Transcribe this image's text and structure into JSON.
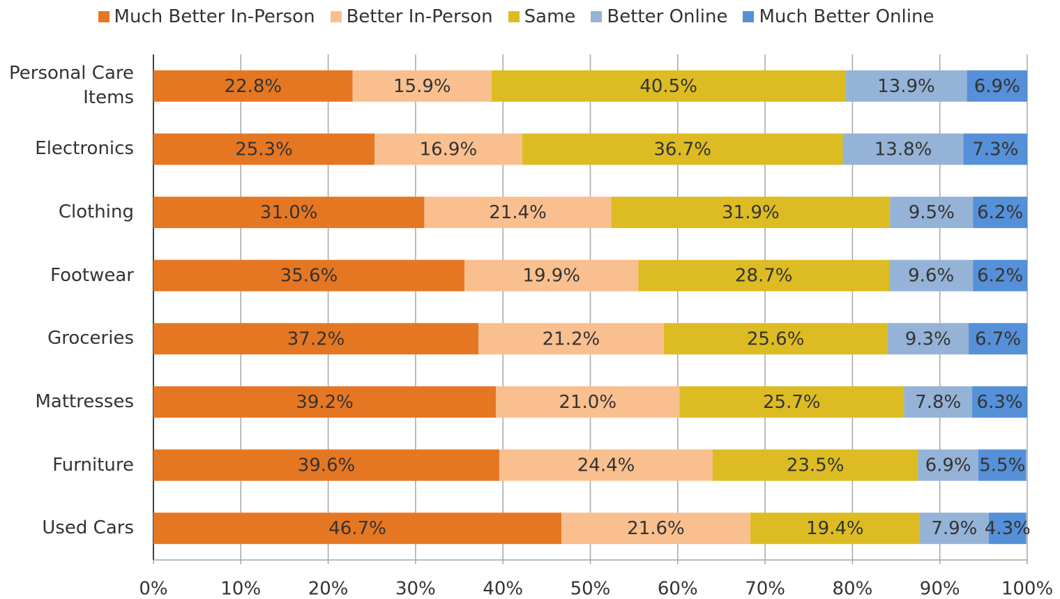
{
  "chart_data": {
    "type": "stacked_bar_horizontal",
    "categories": [
      "Personal Care Items",
      "Electronics",
      "Clothing",
      "Footwear",
      "Groceries",
      "Mattresses",
      "Furniture",
      "Used Cars"
    ],
    "series": [
      {
        "name": "Much Better In-Person",
        "color": "#e67722",
        "values": [
          22.8,
          25.3,
          31.0,
          35.6,
          37.2,
          39.2,
          39.6,
          46.7
        ],
        "value_labels": [
          "22.8%",
          "25.3%",
          "31.0%",
          "35.6%",
          "37.2%",
          "39.2%",
          "39.6%",
          "46.7%"
        ]
      },
      {
        "name": "Better In-Person",
        "color": "#f9bf8f",
        "values": [
          15.9,
          16.9,
          21.4,
          19.9,
          21.2,
          21.0,
          24.4,
          21.6
        ],
        "value_labels": [
          "15.9%",
          "16.9%",
          "21.4%",
          "19.9%",
          "21.2%",
          "21.0%",
          "24.4%",
          "21.6%"
        ]
      },
      {
        "name": "Same",
        "color": "#dcbc22",
        "values": [
          40.5,
          36.7,
          31.9,
          28.7,
          25.6,
          25.7,
          23.5,
          19.4
        ],
        "value_labels": [
          "40.5%",
          "36.7%",
          "31.9%",
          "28.7%",
          "25.6%",
          "25.7%",
          "23.5%",
          "19.4%"
        ]
      },
      {
        "name": "Better Online",
        "color": "#95b3d7",
        "values": [
          13.9,
          13.8,
          9.5,
          9.6,
          9.3,
          7.8,
          6.9,
          7.9
        ],
        "value_labels": [
          "13.9%",
          "13.8%",
          "9.5%",
          "9.6%",
          "9.3%",
          "7.8%",
          "6.9%",
          "7.9%"
        ]
      },
      {
        "name": "Much Better Online",
        "color": "#5590d8",
        "values": [
          6.9,
          7.3,
          6.2,
          6.2,
          6.7,
          6.3,
          5.5,
          4.3
        ],
        "value_labels": [
          "6.9%",
          "7.3%",
          "6.2%",
          "6.2%",
          "6.7%",
          "6.3%",
          "5.5%",
          "4.3%"
        ]
      }
    ],
    "xlim": [
      0,
      100
    ],
    "xticks": [
      {
        "value": 0,
        "label": "0%"
      },
      {
        "value": 10,
        "label": "10%"
      },
      {
        "value": 20,
        "label": "20%"
      },
      {
        "value": 30,
        "label": "30%"
      },
      {
        "value": 40,
        "label": "40%"
      },
      {
        "value": 50,
        "label": "50%"
      },
      {
        "value": 60,
        "label": "60%"
      },
      {
        "value": 70,
        "label": "70%"
      },
      {
        "value": 80,
        "label": "80%"
      },
      {
        "value": 90,
        "label": "90%"
      },
      {
        "value": 100,
        "label": "100%"
      }
    ],
    "grid": true,
    "legend": "top"
  }
}
